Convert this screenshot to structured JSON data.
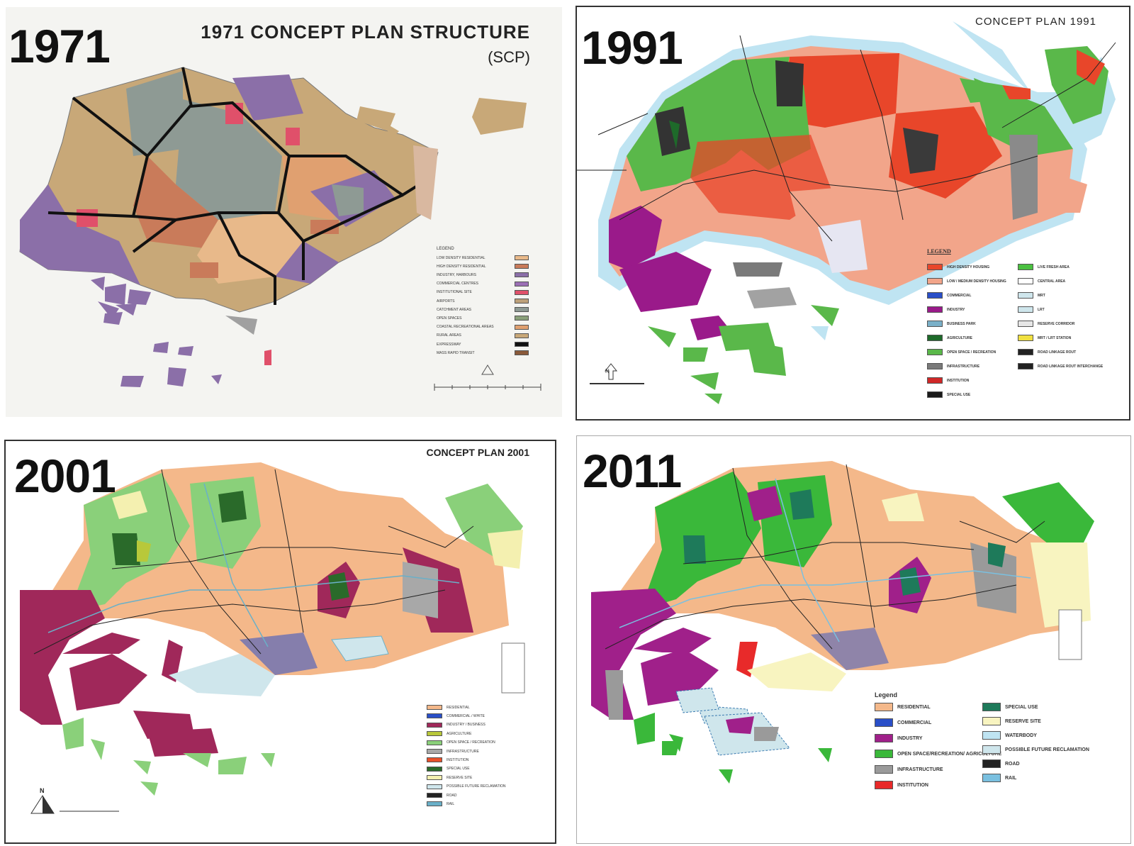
{
  "panels": [
    {
      "year": "1971",
      "title": "1971 CONCEPT PLAN STRUCTURE",
      "subtitle": "(SCP)",
      "legend_heading": "LEGEND",
      "legend": [
        {
          "label": "LOW DENSITY RESIDENTIAL",
          "color": "#e8b98a"
        },
        {
          "label": "HIGH DENSITY RESIDENTIAL",
          "color": "#c97b5a"
        },
        {
          "label": "INDUSTRY, HARBOURS",
          "color": "#8b6fa8"
        },
        {
          "label": "COMMERCIAL CENTRES",
          "color": "#9b6fb5"
        },
        {
          "label": "INSTITUTIONAL SITE",
          "color": "#e0506a"
        },
        {
          "label": "AIRPORTS",
          "color": "#bca07a"
        },
        {
          "label": "CATCHMENT AREAS",
          "color": "#8e9a94"
        },
        {
          "label": "OPEN SPACES",
          "color": "#8aa07a"
        },
        {
          "label": "COASTAL RECREATIONAL AREAS",
          "color": "#e0a070"
        },
        {
          "label": "RURAL AREAS",
          "color": "#c8a878"
        },
        {
          "label": "EXPRESSWAY",
          "color": "#111111"
        },
        {
          "label": "MASS RAPID TRANSIT",
          "color": "#8a5a3a"
        }
      ]
    },
    {
      "year": "1991",
      "title": "CONCEPT PLAN 1991",
      "legend_heading": "LEGEND",
      "legend_left": [
        {
          "label": "HIGH DENSITY HOUSING",
          "color": "#e8462a"
        },
        {
          "label": "LOW / MEDIUM DENSITY HOUSING",
          "color": "#f2a58a"
        },
        {
          "label": "COMMERCIAL",
          "color": "#2a4fc8"
        },
        {
          "label": "INDUSTRY",
          "color": "#9a1a8a"
        },
        {
          "label": "BUSINESS PARK",
          "color": "#7ab0c8"
        },
        {
          "label": "AGRICULTURE",
          "color": "#1e6a2a"
        },
        {
          "label": "OPEN SPACE / RECREATION",
          "color": "#5ab84a"
        },
        {
          "label": "INFRASTRUCTURE",
          "color": "#7a7a7a"
        },
        {
          "label": "INSTITUTION",
          "color": "#d02828"
        },
        {
          "label": "SPECIAL USE",
          "color": "#1a1a1a"
        }
      ],
      "legend_right": [
        {
          "label": "LIVE FRESH AREA",
          "color": "#4ac040"
        },
        {
          "label": "CENTRAL AREA",
          "color": "#ffffff"
        },
        {
          "label": "MRT",
          "color": "#cfe6ec"
        },
        {
          "label": "LRT",
          "color": "#cfe6ec"
        },
        {
          "label": "RESERVE CORRIDOR",
          "color": "#e6e6e6"
        },
        {
          "label": "MRT / LRT STATION",
          "color": "#f0e040"
        },
        {
          "label": "ROAD LINKAGE ROUT",
          "color": "#222222"
        },
        {
          "label": "ROAD LINKAGE ROUT INTERCHANGE",
          "color": "#222222"
        }
      ],
      "north_label": "N"
    },
    {
      "year": "2001",
      "title": "CONCEPT PLAN  2001",
      "legend": [
        {
          "label": "RESIDENTIAL",
          "color": "#f4b88a"
        },
        {
          "label": "COMMERCIAL / WHITE",
          "color": "#2a4fc8"
        },
        {
          "label": "INDUSTRY / BUSINESS",
          "color": "#a0285a"
        },
        {
          "label": "AGRICULTURE",
          "color": "#b8c83a"
        },
        {
          "label": "OPEN SPACE / RECREATION",
          "color": "#8ad07a"
        },
        {
          "label": "INFRASTRUCTURE",
          "color": "#a8a8a8"
        },
        {
          "label": "INSTITUTION",
          "color": "#e8502a"
        },
        {
          "label": "SPECIAL USE",
          "color": "#2a6a2a"
        },
        {
          "label": "RESERVE SITE",
          "color": "#f4f0b0"
        },
        {
          "label": "POSSIBLE FUTURE RECLAMATION",
          "color": "#cfe6ec"
        },
        {
          "label": "ROAD",
          "color": "#222222"
        },
        {
          "label": "RAIL",
          "color": "#6ab0c8"
        }
      ],
      "north_label": "N"
    },
    {
      "year": "2011",
      "legend_heading": "Legend",
      "legend_left": [
        {
          "label": "RESIDENTIAL",
          "color": "#f4b88a"
        },
        {
          "label": "COMMERCIAL",
          "color": "#2a4fc8"
        },
        {
          "label": "INDUSTRY",
          "color": "#a0208a"
        },
        {
          "label": "OPEN SPACE/RECREATION/ AGRICULTURE",
          "color": "#3ab83a"
        },
        {
          "label": "INFRASTRUCTURE",
          "color": "#9a9a9a"
        },
        {
          "label": "INSTITUTION",
          "color": "#e82a2a"
        }
      ],
      "legend_right": [
        {
          "label": "SPECIAL USE",
          "color": "#1e7a5a"
        },
        {
          "label": "RESERVE SITE",
          "color": "#f8f4c0"
        },
        {
          "label": "WATERBODY",
          "color": "#bfe4f2"
        },
        {
          "label": "POSSIBLE FUTURE RECLAMATION",
          "color": "#cfe6ec"
        },
        {
          "label": "ROAD",
          "color": "#222222"
        },
        {
          "label": "RAIL",
          "color": "#7ac0e0"
        }
      ]
    }
  ]
}
